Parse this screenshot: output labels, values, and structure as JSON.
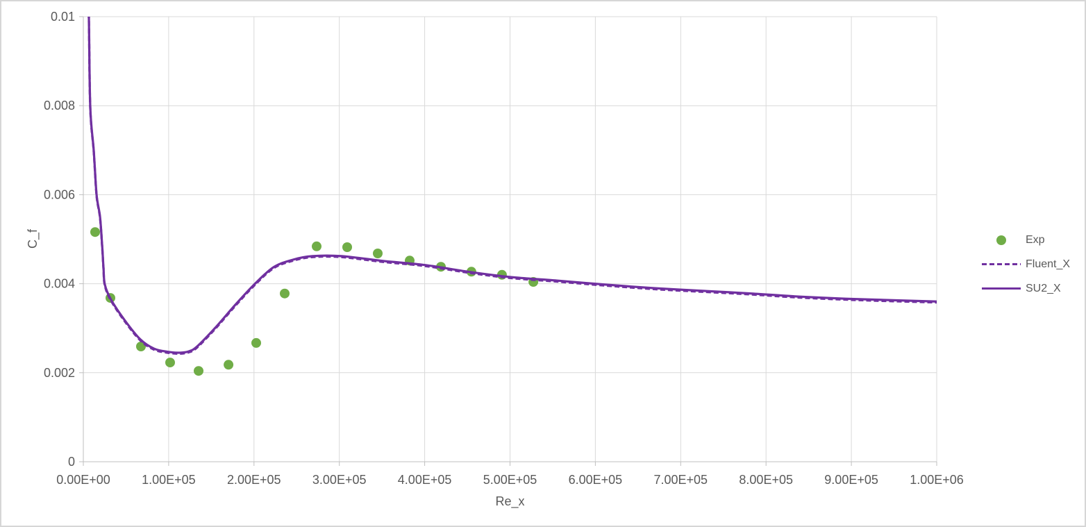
{
  "window": {
    "background": "#FFFFFF",
    "border_color": "#D6D6D6"
  },
  "chart_data": {
    "type": "scatter",
    "title": "",
    "xlabel": "Re_x",
    "ylabel": "C_f",
    "xlim": [
      0,
      1000000
    ],
    "ylim": [
      0,
      0.01
    ],
    "grid": true,
    "legend_position": "right",
    "x_ticks": {
      "values": [
        0,
        100000,
        200000,
        300000,
        400000,
        500000,
        600000,
        700000,
        800000,
        900000,
        1000000
      ],
      "labels": [
        "0.00E+00",
        "1.00E+05",
        "2.00E+05",
        "3.00E+05",
        "4.00E+05",
        "5.00E+05",
        "6.00E+05",
        "7.00E+05",
        "8.00E+05",
        "9.00E+05",
        "1.00E+06"
      ]
    },
    "y_ticks": {
      "values": [
        0,
        0.002,
        0.004,
        0.006,
        0.008,
        0.01
      ],
      "labels": [
        "0",
        "0.002",
        "0.004",
        "0.006",
        "0.008",
        "0.01"
      ]
    },
    "styles": {
      "gridline_color": "#D9D9D9",
      "axis_line_color": "#BFBFBF",
      "text_color": "#595959",
      "tick_length": 6,
      "line_width": 3.25,
      "marker_radius": 7
    },
    "series": [
      {
        "name": "Exp",
        "type": "scatter",
        "marker": "circle",
        "color": "#70AD47",
        "points": [
          [
            13800,
            0.00516
          ],
          [
            31700,
            0.00368
          ],
          [
            67500,
            0.00259
          ],
          [
            101700,
            0.00223
          ],
          [
            135100,
            0.00204
          ],
          [
            170100,
            0.00218
          ],
          [
            202600,
            0.00267
          ],
          [
            236000,
            0.00378
          ],
          [
            273400,
            0.00484
          ],
          [
            309200,
            0.00482
          ],
          [
            345000,
            0.00468
          ],
          [
            382400,
            0.00452
          ],
          [
            419000,
            0.00438
          ],
          [
            454800,
            0.00427
          ],
          [
            490600,
            0.0042
          ],
          [
            527300,
            0.00404
          ]
        ]
      },
      {
        "name": "Fluent_X",
        "type": "line",
        "style": "dashed",
        "color": "#7030A0",
        "points": [
          [
            4000,
            0.0125
          ],
          [
            6500,
            0.00998
          ],
          [
            8100,
            0.00797
          ],
          [
            12200,
            0.00699
          ],
          [
            15500,
            0.00601
          ],
          [
            19500,
            0.00551
          ],
          [
            22000,
            0.00488
          ],
          [
            23600,
            0.00437
          ],
          [
            25200,
            0.00398
          ],
          [
            32500,
            0.00364
          ],
          [
            48800,
            0.00317
          ],
          [
            66700,
            0.00275
          ],
          [
            83000,
            0.00254
          ],
          [
            99300,
            0.00247
          ],
          [
            113000,
            0.00245
          ],
          [
            123700,
            0.00248
          ],
          [
            133400,
            0.00259
          ],
          [
            154600,
            0.00301
          ],
          [
            177400,
            0.00351
          ],
          [
            200200,
            0.00398
          ],
          [
            222900,
            0.00437
          ],
          [
            245700,
            0.00454
          ],
          [
            268500,
            0.00462
          ],
          [
            302700,
            0.00462
          ],
          [
            351500,
            0.00451
          ],
          [
            400300,
            0.00442
          ],
          [
            450800,
            0.00427
          ],
          [
            500400,
            0.00415
          ],
          [
            554900,
            0.00407
          ],
          [
            611900,
            0.00398
          ],
          [
            668800,
            0.0039
          ],
          [
            725800,
            0.00384
          ],
          [
            782800,
            0.00378
          ],
          [
            839700,
            0.00371
          ],
          [
            912900,
            0.00365
          ],
          [
            1000000,
            0.0036
          ]
        ]
      },
      {
        "name": "SU2_X",
        "type": "line",
        "style": "solid",
        "color": "#7030A0",
        "points": [
          [
            4000,
            0.0125
          ],
          [
            6500,
            0.00998
          ],
          [
            8100,
            0.00797
          ],
          [
            12200,
            0.00699
          ],
          [
            15500,
            0.00601
          ],
          [
            19500,
            0.00551
          ],
          [
            22000,
            0.00488
          ],
          [
            23600,
            0.00437
          ],
          [
            25200,
            0.00398
          ],
          [
            32500,
            0.00364
          ],
          [
            48800,
            0.00317
          ],
          [
            66700,
            0.00275
          ],
          [
            83000,
            0.00254
          ],
          [
            99300,
            0.00247
          ],
          [
            113000,
            0.00245
          ],
          [
            123700,
            0.00248
          ],
          [
            133400,
            0.00259
          ],
          [
            154600,
            0.00301
          ],
          [
            177400,
            0.00351
          ],
          [
            200200,
            0.00398
          ],
          [
            222900,
            0.00437
          ],
          [
            245700,
            0.00454
          ],
          [
            268500,
            0.00462
          ],
          [
            302700,
            0.00462
          ],
          [
            351500,
            0.00451
          ],
          [
            400300,
            0.00442
          ],
          [
            450800,
            0.00427
          ],
          [
            500400,
            0.00415
          ],
          [
            554900,
            0.00407
          ],
          [
            611900,
            0.00398
          ],
          [
            668800,
            0.0039
          ],
          [
            725800,
            0.00384
          ],
          [
            782800,
            0.00378
          ],
          [
            839700,
            0.00371
          ],
          [
            912900,
            0.00365
          ],
          [
            1000000,
            0.0036
          ]
        ]
      }
    ]
  }
}
